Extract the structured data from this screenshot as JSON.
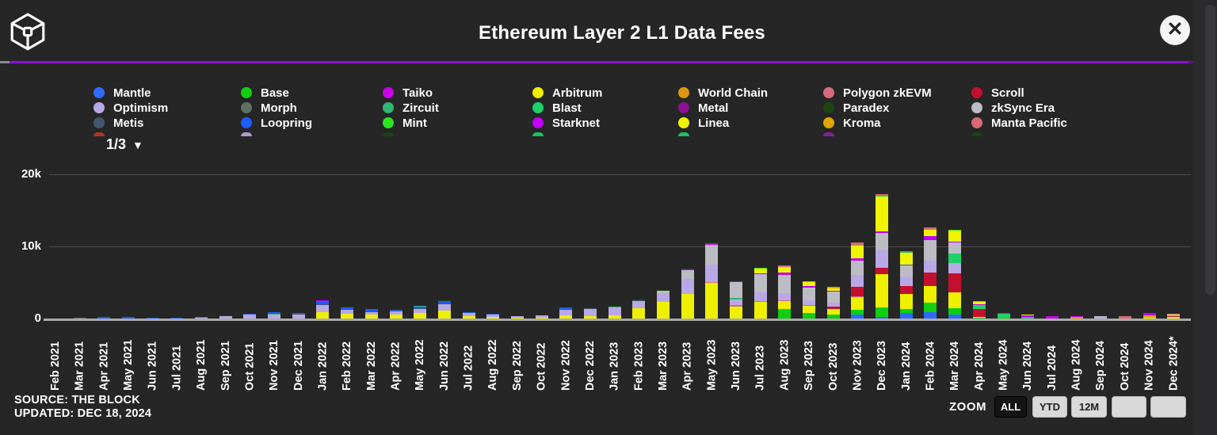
{
  "header": {
    "title": "Ethereum Layer 2 L1 Data Fees",
    "close_label": "✕"
  },
  "legend": {
    "pagination_label": "1/3",
    "dropdown_icon": "▼",
    "columns": [
      [
        {
          "label": "Mantle",
          "color": "#2f6bff"
        },
        {
          "label": "Optimism",
          "color": "#b9a8e6"
        },
        {
          "label": "Metis",
          "color": "#41586c"
        }
      ],
      [
        {
          "label": "Base",
          "color": "#0ed00e"
        },
        {
          "label": "Morph",
          "color": "#5c7263"
        },
        {
          "label": "Loopring",
          "color": "#1b5cff"
        }
      ],
      [
        {
          "label": "Taiko",
          "color": "#cb00e8"
        },
        {
          "label": "Zircuit",
          "color": "#2db873"
        },
        {
          "label": "Mint",
          "color": "#28e51e"
        }
      ],
      [
        {
          "label": "Arbitrum",
          "color": "#eef000"
        },
        {
          "label": "Blast",
          "color": "#1dd268"
        },
        {
          "label": "Starknet",
          "color": "#bf00ff"
        }
      ],
      [
        {
          "label": "World Chain",
          "color": "#d9980f"
        },
        {
          "label": "Metal",
          "color": "#8c0f96"
        },
        {
          "label": "Linea",
          "color": "#f1f400"
        }
      ],
      [
        {
          "label": "Polygon zkEVM",
          "color": "#d9697f"
        },
        {
          "label": "Paradex",
          "color": "#1c4712"
        },
        {
          "label": "Kroma",
          "color": "#e0a602"
        }
      ],
      [
        {
          "label": "Scroll",
          "color": "#c50f2e"
        },
        {
          "label": "zkSync Era",
          "color": "#bcbcc4"
        },
        {
          "label": "Manta Pacific",
          "color": "#d96973"
        }
      ]
    ],
    "partial_dot_colors": [
      "#c0392b",
      "#b9a8e6",
      "#1c4712",
      "#1dd268",
      "#1dd268",
      "#8e24aa",
      "#1c4712"
    ]
  },
  "chart_data": {
    "type": "bar",
    "stacked": true,
    "title": "Ethereum Layer 2 L1 Data Fees",
    "ylabel": "",
    "xlabel": "",
    "ylim": [
      0,
      20000
    ],
    "yticks": [
      {
        "label": "0",
        "value": 0
      },
      {
        "label": "10k",
        "value": 10000
      },
      {
        "label": "20k",
        "value": 20000
      }
    ],
    "grid": "horizontal",
    "legend_position": "top",
    "series_colors": {
      "mantle": "#2f6bff",
      "base": "#0ed00e",
      "taiko": "#cb00e8",
      "arbitrum": "#eef000",
      "worldchain": "#d9980f",
      "polygonzkevm": "#d9697f",
      "scroll": "#c50f2e",
      "optimism": "#b9a8e6",
      "morph": "#5c7263",
      "zircuit": "#2db873",
      "blast": "#1dd268",
      "metal": "#8c0f96",
      "paradex": "#1c4712",
      "zksync": "#bcbcc4",
      "metis": "#41586c",
      "loopring": "#1b5cff",
      "mint": "#28e51e",
      "starknet": "#bf00ff",
      "linea": "#f1f400",
      "kroma": "#e0a602",
      "manta": "#d96973"
    },
    "months": [
      "Feb 2021",
      "Mar 2021",
      "Apr 2021",
      "May 2021",
      "Jun 2021",
      "Jul 2021",
      "Aug 2021",
      "Sep 2021",
      "Oct 2021",
      "Nov 2021",
      "Dec 2021",
      "Jan 2022",
      "Feb 2022",
      "Mar 2022",
      "Apr 2022",
      "May 2022",
      "Jun 2022",
      "Jul 2022",
      "Aug 2022",
      "Sep 2022",
      "Oct 2022",
      "Nov 2022",
      "Dec 2022",
      "Jan 2023",
      "Feb 2023",
      "Mar 2023",
      "Apr 2023",
      "May 2023",
      "Jun 2023",
      "Jul 2023",
      "Aug 2023",
      "Sep 2023",
      "Oct 2023",
      "Nov 2023",
      "Dec 2023",
      "Jan 2024",
      "Feb 2024",
      "Mar 2024",
      "Apr 2024",
      "May 2024",
      "Jun 2024",
      "Jul 2024",
      "Aug 2024",
      "Sep 2024",
      "Oct 2024",
      "Nov 2024",
      "Dec 2024*"
    ],
    "bars": [
      [],
      [
        [
          "morph",
          60
        ]
      ],
      [
        [
          "loopring",
          220
        ]
      ],
      [
        [
          "loopring",
          260
        ]
      ],
      [
        [
          "loopring",
          70
        ]
      ],
      [
        [
          "loopring",
          50
        ]
      ],
      [
        [
          "optimism",
          130
        ],
        [
          "morph",
          50
        ]
      ],
      [
        [
          "optimism",
          330
        ],
        [
          "paradex",
          50
        ]
      ],
      [
        [
          "optimism",
          520
        ],
        [
          "loopring",
          60
        ]
      ],
      [
        [
          "optimism",
          560
        ],
        [
          "zircuit",
          80
        ],
        [
          "metis",
          70
        ],
        [
          "loopring",
          130
        ]
      ],
      [
        [
          "optimism",
          500
        ],
        [
          "metis",
          60
        ],
        [
          "loopring",
          160
        ]
      ],
      [
        [
          "arbitrum",
          900
        ],
        [
          "optimism",
          950
        ],
        [
          "metis",
          160
        ],
        [
          "loopring",
          450
        ],
        [
          "starknet",
          60
        ]
      ],
      [
        [
          "arbitrum",
          700
        ],
        [
          "optimism",
          550
        ],
        [
          "metis",
          90
        ],
        [
          "loopring",
          130
        ],
        [
          "paradex",
          60
        ]
      ],
      [
        [
          "arbitrum",
          520
        ],
        [
          "optimism",
          390
        ],
        [
          "metis",
          60
        ],
        [
          "loopring",
          260
        ]
      ],
      [
        [
          "arbitrum",
          560
        ],
        [
          "optimism",
          450
        ],
        [
          "metis",
          60
        ],
        [
          "loopring",
          110
        ]
      ],
      [
        [
          "arbitrum",
          720
        ],
        [
          "optimism",
          620
        ],
        [
          "metis",
          100
        ],
        [
          "loopring",
          160
        ],
        [
          "zircuit",
          60
        ]
      ],
      [
        [
          "arbitrum",
          1100
        ],
        [
          "optimism",
          900
        ],
        [
          "metis",
          130
        ],
        [
          "loopring",
          260
        ],
        [
          "paradex",
          60
        ]
      ],
      [
        [
          "arbitrum",
          360
        ],
        [
          "optimism",
          400
        ],
        [
          "loopring",
          90
        ]
      ],
      [
        [
          "arbitrum",
          260
        ],
        [
          "optimism",
          300
        ],
        [
          "loopring",
          60
        ]
      ],
      [
        [
          "arbitrum",
          70
        ],
        [
          "optimism",
          210
        ]
      ],
      [
        [
          "arbitrum",
          110
        ],
        [
          "optimism",
          360
        ]
      ],
      [
        [
          "arbitrum",
          420
        ],
        [
          "optimism",
          820
        ],
        [
          "metis",
          60
        ],
        [
          "loopring",
          160
        ]
      ],
      [
        [
          "arbitrum",
          360
        ],
        [
          "optimism",
          960
        ],
        [
          "metis",
          60
        ]
      ],
      [
        [
          "arbitrum",
          460
        ],
        [
          "optimism",
          1120
        ],
        [
          "zircuit",
          100
        ],
        [
          "paradex",
          60
        ]
      ],
      [
        [
          "arbitrum",
          1380
        ],
        [
          "optimism",
          1020
        ],
        [
          "metis",
          80
        ],
        [
          "paradex",
          60
        ]
      ],
      [
        [
          "arbitrum",
          2320
        ],
        [
          "optimism",
          1230
        ],
        [
          "zksync",
          350
        ],
        [
          "paradex",
          80
        ]
      ],
      [
        [
          "arbitrum",
          3400
        ],
        [
          "optimism",
          2050
        ],
        [
          "zksync",
          1300
        ],
        [
          "starknet",
          90
        ],
        [
          "paradex",
          90
        ]
      ],
      [
        [
          "arbitrum",
          4900
        ],
        [
          "polygonzkevm",
          160
        ],
        [
          "optimism",
          2400
        ],
        [
          "zksync",
          2750
        ],
        [
          "starknet",
          200
        ],
        [
          "paradex",
          100
        ]
      ],
      [
        [
          "arbitrum",
          1650
        ],
        [
          "polygonzkevm",
          200
        ],
        [
          "optimism",
          820
        ],
        [
          "zircuit",
          160
        ],
        [
          "zksync",
          2200
        ],
        [
          "starknet",
          150
        ]
      ],
      [
        [
          "arbitrum",
          2300
        ],
        [
          "polygonzkevm",
          160
        ],
        [
          "optimism",
          1200
        ],
        [
          "zksync",
          2500
        ],
        [
          "starknet",
          160
        ],
        [
          "linea",
          560
        ],
        [
          "mint",
          200
        ]
      ],
      [
        [
          "base",
          1300
        ],
        [
          "arbitrum",
          1100
        ],
        [
          "polygonzkevm",
          160
        ],
        [
          "optimism",
          1000
        ],
        [
          "zksync",
          2500
        ],
        [
          "starknet",
          300
        ],
        [
          "linea",
          760
        ],
        [
          "manta",
          260
        ]
      ],
      [
        [
          "base",
          720
        ],
        [
          "arbitrum",
          1000
        ],
        [
          "polygonzkevm",
          160
        ],
        [
          "optimism",
          620
        ],
        [
          "zksync",
          1800
        ],
        [
          "starknet",
          160
        ],
        [
          "linea",
          560
        ],
        [
          "kroma",
          160
        ]
      ],
      [
        [
          "base",
          520
        ],
        [
          "arbitrum",
          820
        ],
        [
          "scroll",
          300
        ],
        [
          "optimism",
          520
        ],
        [
          "zksync",
          1600
        ],
        [
          "starknet",
          120
        ],
        [
          "linea",
          320
        ],
        [
          "kroma",
          260
        ]
      ],
      [
        [
          "mantle",
          520
        ],
        [
          "base",
          720
        ],
        [
          "arbitrum",
          1700
        ],
        [
          "polygonzkevm",
          100
        ],
        [
          "scroll",
          1300
        ],
        [
          "optimism",
          1700
        ],
        [
          "zksync",
          2000
        ],
        [
          "starknet",
          360
        ],
        [
          "linea",
          1700
        ],
        [
          "mint",
          160
        ],
        [
          "manta",
          260
        ]
      ],
      [
        [
          "mantle",
          220
        ],
        [
          "base",
          1300
        ],
        [
          "arbitrum",
          4600
        ],
        [
          "scroll",
          900
        ],
        [
          "optimism",
          2400
        ],
        [
          "zksync",
          2400
        ],
        [
          "starknet",
          260
        ],
        [
          "linea",
          4800
        ],
        [
          "zircuit",
          160
        ],
        [
          "manta",
          260
        ]
      ],
      [
        [
          "mantle",
          720
        ],
        [
          "base",
          620
        ],
        [
          "arbitrum",
          2100
        ],
        [
          "scroll",
          1100
        ],
        [
          "optimism",
          1300
        ],
        [
          "zksync",
          1500
        ],
        [
          "loopring",
          160
        ],
        [
          "linea",
          1650
        ],
        [
          "zircuit",
          200
        ]
      ],
      [
        [
          "mantle",
          850
        ],
        [
          "base",
          1300
        ],
        [
          "arbitrum",
          2400
        ],
        [
          "scroll",
          1800
        ],
        [
          "optimism",
          1650
        ],
        [
          "zksync",
          2900
        ],
        [
          "starknet",
          560
        ],
        [
          "linea",
          900
        ],
        [
          "manta",
          300
        ]
      ],
      [
        [
          "mantle",
          520
        ],
        [
          "base",
          900
        ],
        [
          "arbitrum",
          2200
        ],
        [
          "scroll",
          2600
        ],
        [
          "optimism",
          1500
        ],
        [
          "blast",
          1300
        ],
        [
          "zksync",
          1500
        ],
        [
          "starknet",
          200
        ],
        [
          "linea",
          1500
        ],
        [
          "mint",
          100
        ]
      ],
      [
        [
          "base",
          60
        ],
        [
          "arbitrum",
          60
        ],
        [
          "scroll",
          1150
        ],
        [
          "blast",
          520
        ],
        [
          "starknet",
          100
        ],
        [
          "linea",
          260
        ],
        [
          "kroma",
          60
        ]
      ],
      [
        [
          "base",
          120
        ],
        [
          "blast",
          540
        ],
        [
          "taiko",
          60
        ]
      ],
      [
        [
          "zircuit",
          180
        ],
        [
          "starknet",
          240
        ],
        [
          "linea",
          80
        ]
      ],
      [
        [
          "taiko",
          300
        ]
      ],
      [
        [
          "worldchain",
          260
        ],
        [
          "taiko",
          60
        ]
      ],
      [
        [
          "optimism",
          220
        ],
        [
          "zksync",
          80
        ]
      ],
      [
        [
          "polygonzkevm",
          160
        ],
        [
          "manta",
          200
        ]
      ],
      [
        [
          "arbitrum",
          160
        ],
        [
          "kroma",
          260
        ],
        [
          "starknet",
          340
        ]
      ],
      [
        [
          "arbitrum",
          180
        ],
        [
          "scroll",
          90
        ],
        [
          "optimism",
          210
        ],
        [
          "kroma",
          190
        ]
      ]
    ]
  },
  "footer": {
    "source": "SOURCE: THE BLOCK",
    "updated": "UPDATED: DEC 18, 2024",
    "zoom_label": "ZOOM",
    "zoom_buttons": [
      {
        "label": "ALL",
        "active": true
      },
      {
        "label": "YTD",
        "active": false
      },
      {
        "label": "12M",
        "active": false
      },
      {
        "label": "",
        "active": false
      },
      {
        "label": "",
        "active": false
      }
    ]
  }
}
